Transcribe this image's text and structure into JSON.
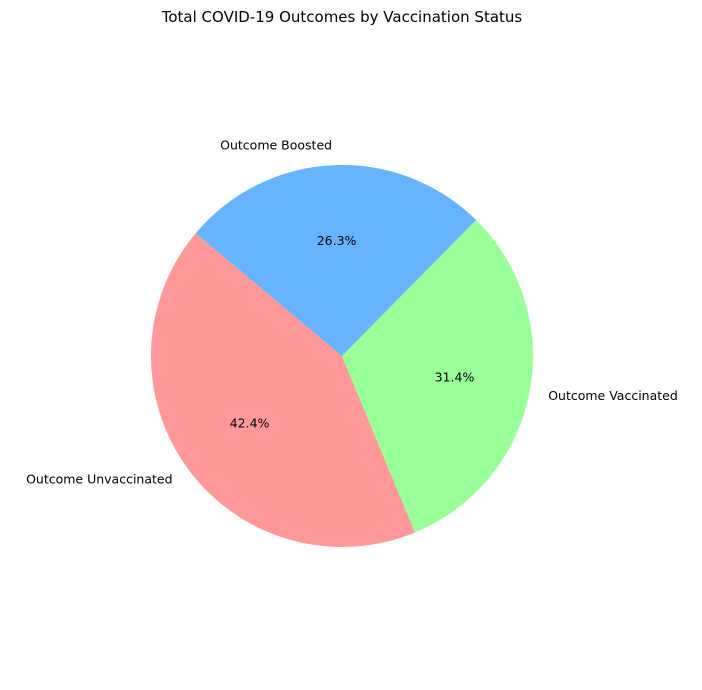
{
  "chart_data": {
    "type": "pie",
    "title": "Total COVID-19 Outcomes by Vaccination Status",
    "categories": [
      "Outcome Unvaccinated",
      "Outcome Vaccinated",
      "Outcome Boosted"
    ],
    "values": [
      42.4,
      31.4,
      26.3
    ],
    "percent_labels": [
      "42.4%",
      "31.4%",
      "26.3%"
    ],
    "colors": [
      "#ff9999",
      "#99ff99",
      "#66b3ff"
    ],
    "start_angle_deg": 140,
    "direction": "counterclockwise",
    "legend": "none"
  }
}
